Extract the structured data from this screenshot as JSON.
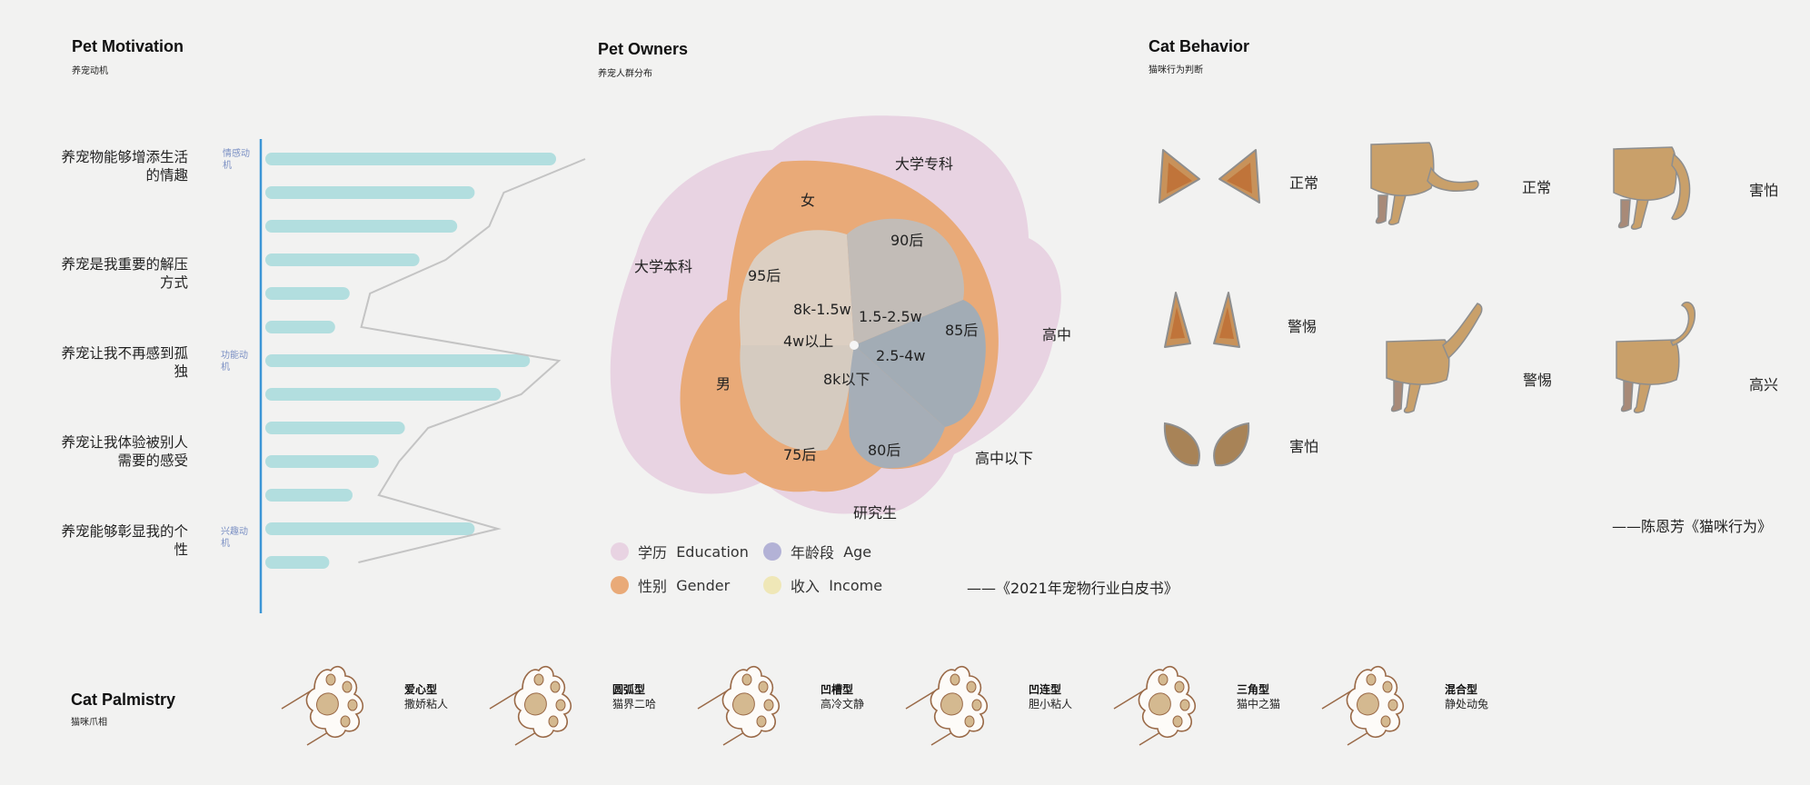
{
  "motivation": {
    "title": "Pet Motivation",
    "subtitle": "养宠动机",
    "motives": [
      "养宠物能够增添生活的情趣",
      "养宠是我重要的解压方式",
      "养宠让我不再感到孤独",
      "养宠让我体验被别人需要的感受",
      "养宠能够彰显我的个性"
    ],
    "category_labels": [
      "情感动机",
      "功能动机",
      "兴趣动机"
    ]
  },
  "owners": {
    "title": "Pet Owners",
    "subtitle": "养宠人群分布",
    "labels": {
      "edu_college": "大学专科",
      "edu_bachelor": "大学本科",
      "edu_high": "高中",
      "edu_below_high": "高中以下",
      "edu_grad": "研究生",
      "gender_f": "女",
      "gender_m": "男",
      "age_95": "95后",
      "age_90": "90后",
      "age_85": "85后",
      "age_80": "80后",
      "age_75": "75后",
      "inc_8k15": "8k-1.5w",
      "inc_15_25": "1.5-2.5w",
      "inc_4w": "4w以上",
      "inc_25_4": "2.5-4w",
      "inc_8k": "8k以下"
    },
    "legend": [
      {
        "cn": "学历",
        "en": "Education",
        "color": "#e8d3e2"
      },
      {
        "cn": "年龄段",
        "en": "Age",
        "color": "#b3b2d6"
      },
      {
        "cn": "性别",
        "en": "Gender",
        "color": "#e9aa78"
      },
      {
        "cn": "收入",
        "en": "Income",
        "color": "#efe7b7"
      }
    ],
    "source": "——《2021年宠物行业白皮书》"
  },
  "behavior": {
    "title": "Cat Behavior",
    "subtitle": "猫咪行为判断",
    "ears": [
      "正常",
      "警惕",
      "害怕"
    ],
    "tails": [
      "正常",
      "害怕",
      "警惕",
      "高兴"
    ],
    "source": "——陈恩芳《猫咪行为》"
  },
  "palmistry": {
    "title": "Cat Palmistry",
    "subtitle": "猫咪爪相",
    "types": [
      {
        "name": "爱心型",
        "desc": "撒娇粘人"
      },
      {
        "name": "圆弧型",
        "desc": "猫界二哈"
      },
      {
        "name": "凹槽型",
        "desc": "高冷文静"
      },
      {
        "name": "凹连型",
        "desc": "胆小粘人"
      },
      {
        "name": "三角型",
        "desc": "猫中之猫"
      },
      {
        "name": "混合型",
        "desc": "静处动兔"
      }
    ]
  },
  "chart_data": [
    {
      "type": "bar",
      "orientation": "horizontal",
      "title": "Pet Motivation",
      "subtitle": "养宠动机",
      "values": [
        100,
        72,
        66,
        53,
        29,
        24,
        91,
        81,
        48,
        39,
        30,
        72,
        22
      ],
      "line_values": [
        110,
        82,
        77,
        62,
        36,
        33,
        101,
        88,
        56,
        46,
        39,
        80,
        32
      ],
      "colors": {
        "bar": "#b2dedf",
        "line": "#c4c4c4",
        "axis": "#3c96d6"
      }
    },
    {
      "type": "area",
      "title": "Pet Owners",
      "subtitle": "养宠人群分布",
      "rings": [
        "学历 Education",
        "性别 Gender",
        "年龄段 Age",
        "收入 Income"
      ],
      "colors": {
        "education": "#e8d3e2",
        "gender": "#e9aa78",
        "income": "#dccfc2",
        "age": "#a2acb5"
      }
    }
  ]
}
